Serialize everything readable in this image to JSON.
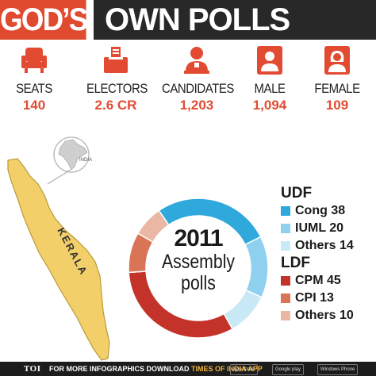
{
  "title": {
    "part1": "GOD’S",
    "part2": "OWN POLLS"
  },
  "stats": [
    {
      "label": "SEATS",
      "value": "140",
      "icon": "seat-icon"
    },
    {
      "label": "ELECTORS",
      "value": "2.6 CR",
      "icon": "ballot-box-icon"
    },
    {
      "label": "CANDIDATES",
      "value": "1,203",
      "icon": "candidate-icon"
    },
    {
      "label": "MALE",
      "value": "1,094",
      "icon": "male-icon"
    },
    {
      "label": "FEMALE",
      "value": "109",
      "icon": "female-icon"
    }
  ],
  "map": {
    "region_label": "KERALA",
    "inset_label": "INDIA"
  },
  "chart_data": {
    "type": "pie",
    "donut": true,
    "center_text": {
      "year": "2011",
      "line1": "Assembly",
      "line2": "polls"
    },
    "groups": [
      {
        "name": "UDF",
        "items": [
          {
            "label": "Cong 38",
            "value": 38,
            "color": "#2fa8dc"
          },
          {
            "label": "IUML 20",
            "value": 20,
            "color": "#8fd0ee"
          },
          {
            "label": "Others 14",
            "value": 14,
            "color": "#c9e9f7"
          }
        ]
      },
      {
        "name": "LDF",
        "items": [
          {
            "label": "CPM 45",
            "value": 45,
            "color": "#c4332a"
          },
          {
            "label": "CPI 13",
            "value": 13,
            "color": "#d97456"
          },
          {
            "label": "Others 10",
            "value": 10,
            "color": "#e9b7a3"
          }
        ]
      }
    ]
  },
  "footer": {
    "logo": "TOI",
    "text_prefix": "FOR MORE  INFOGRAPHICS DOWNLOAD ",
    "text_accent": "TIMES OF INDIA APP",
    "stores": [
      "App Store",
      "Google play",
      "Windows Phone"
    ]
  },
  "colors": {
    "accent": "#e04a2f",
    "title_dark": "#282828",
    "map_fill": "#f3cf6a"
  }
}
